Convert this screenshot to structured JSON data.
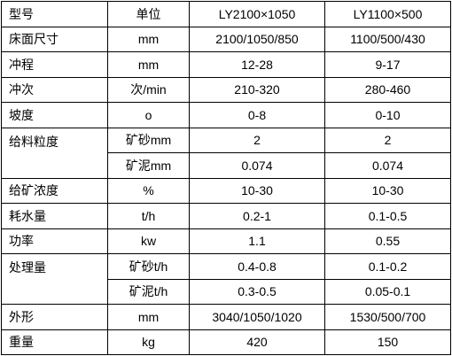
{
  "table": {
    "header": [
      "型号",
      "单位",
      "LY2100×1050",
      "LY1100×500"
    ],
    "rows": [
      {
        "label": "床面尺寸",
        "lines": [
          [
            "mm",
            "2100/1050/850",
            "1100/500/430"
          ]
        ]
      },
      {
        "label": "冲程",
        "lines": [
          [
            "mm",
            "12-28",
            "9-17"
          ]
        ]
      },
      {
        "label": "冲次",
        "lines": [
          [
            "次/min",
            "210-320",
            "280-460"
          ]
        ]
      },
      {
        "label": "坡度",
        "lines": [
          [
            "o",
            "0-8",
            "0-10"
          ]
        ]
      },
      {
        "label": "给料粒度",
        "lines": [
          [
            "矿砂mm",
            "2",
            "2"
          ],
          [
            "矿泥mm",
            "0.074",
            "0.074"
          ]
        ]
      },
      {
        "label": "给矿浓度",
        "lines": [
          [
            "%",
            "10-30",
            "10-30"
          ]
        ]
      },
      {
        "label": "耗水量",
        "lines": [
          [
            "t/h",
            "0.2-1",
            "0.1-0.5"
          ]
        ]
      },
      {
        "label": "功率",
        "lines": [
          [
            "kw",
            "1.1",
            "0.55"
          ]
        ]
      },
      {
        "label": "处理量",
        "lines": [
          [
            "矿砂t/h",
            "0.4-0.8",
            "0.1-0.2"
          ],
          [
            "矿泥t/h",
            "0.3-0.5",
            "0.05-0.1"
          ]
        ]
      },
      {
        "label": "外形",
        "lines": [
          [
            "mm",
            "3040/1050/1020",
            "1530/500/700"
          ]
        ]
      },
      {
        "label": "重量",
        "lines": [
          [
            "kg",
            "420",
            "150"
          ]
        ]
      }
    ]
  }
}
